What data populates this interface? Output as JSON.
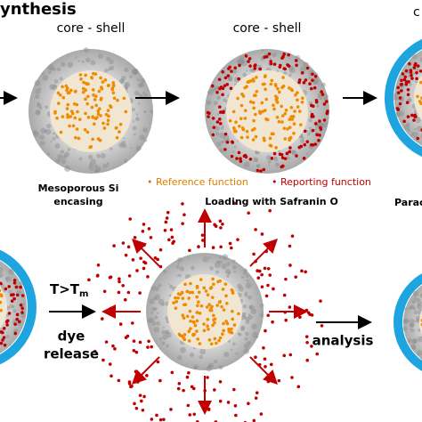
{
  "header": {
    "title": "ynthesis"
  },
  "top": {
    "labels": [
      "core - shell",
      "core - shell",
      "c"
    ],
    "step1": [
      "Mesoporous Si",
      "encasing"
    ],
    "legend": {
      "reference": "• Reference function",
      "reporting": "• Reporting function"
    },
    "step2": "Loading with Safranin O",
    "step3": "Parac"
  },
  "bottom": {
    "condition": "T>T",
    "condition_sub": "m",
    "release": [
      "dye",
      "release"
    ],
    "analysis": "analysis"
  }
}
